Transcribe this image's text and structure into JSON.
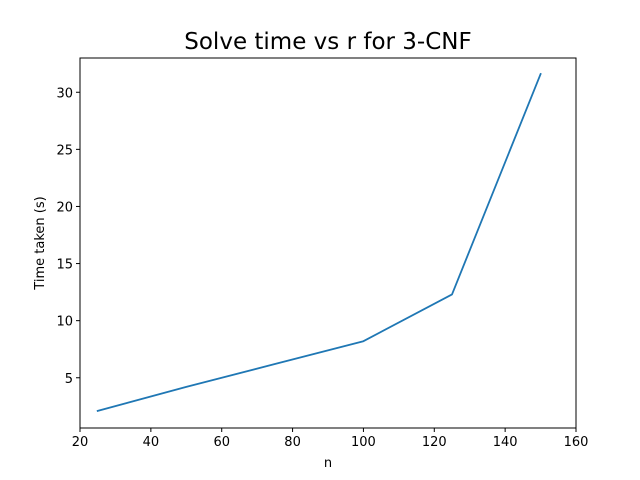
{
  "chart_data": {
    "type": "line",
    "title": "Solve time vs r for 3-CNF",
    "xlabel": "n",
    "ylabel": "Time taken (s)",
    "xlim": [
      20,
      160
    ],
    "ylim": [
      0.6,
      33
    ],
    "xticks": [
      20,
      40,
      60,
      80,
      100,
      120,
      140,
      160
    ],
    "yticks": [
      5,
      10,
      15,
      20,
      25,
      30
    ],
    "grid": false,
    "series": [
      {
        "color": "#1f77b4",
        "x": [
          25,
          50,
          75,
          100,
          125,
          150
        ],
        "y": [
          2.1,
          4.2,
          6.2,
          8.2,
          12.3,
          31.6
        ]
      }
    ]
  }
}
